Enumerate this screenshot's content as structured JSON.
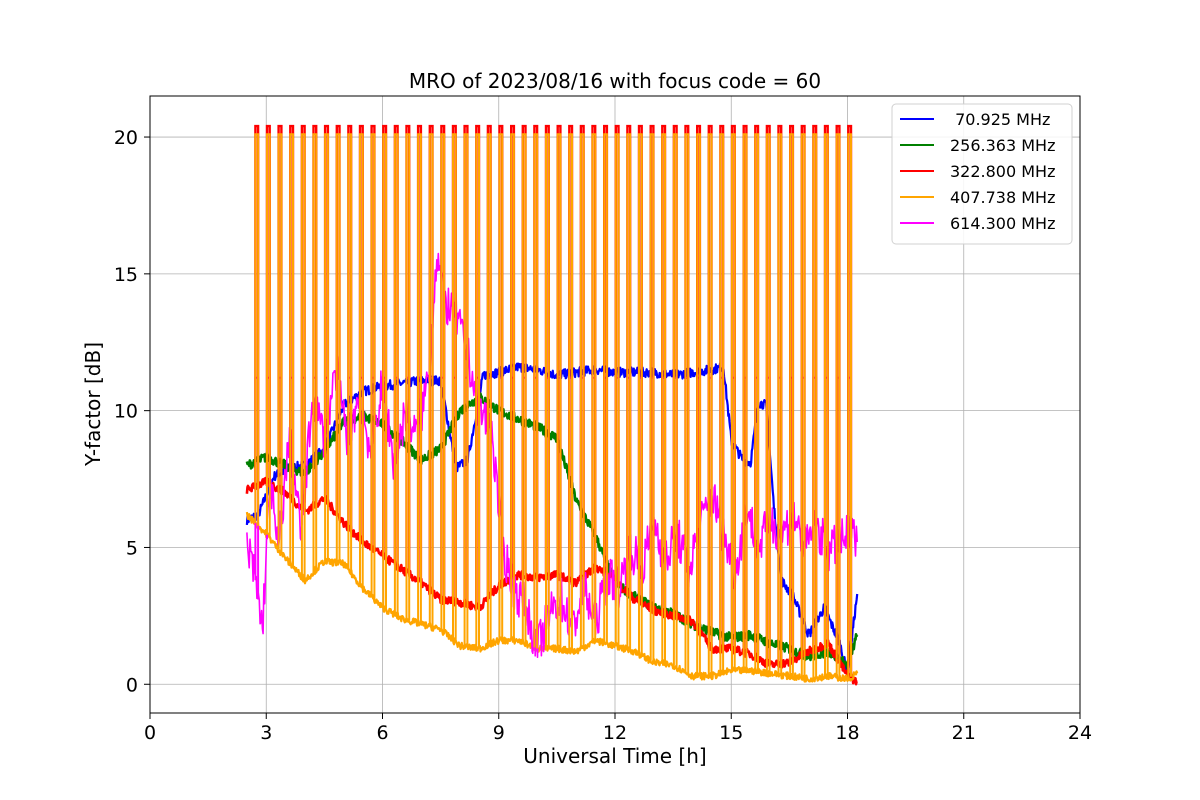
{
  "chart_data": {
    "type": "line",
    "title": "MRO of 2023/08/16 with focus code = 60",
    "xlabel": "Universal Time [h]",
    "ylabel": "Y-factor [dB]",
    "xlim": [
      0,
      24
    ],
    "ylim": [
      -1.05,
      21.5
    ],
    "xticks": [
      0,
      3,
      6,
      9,
      12,
      15,
      18,
      21,
      24
    ],
    "yticks": [
      0,
      5,
      10,
      15,
      20
    ],
    "grid": true,
    "legend_position": "top-right",
    "calibration_pulses": {
      "description_note": null,
      "start_h": 2.72,
      "end_h": 18.25,
      "period_h": 0.3,
      "width_h": 0.07,
      "peak_levels": {
        "322.800 MHz": 20.4,
        "407.738 MHz": 20.1,
        "614.300 MHz": 11.2
      }
    },
    "series": [
      {
        "name": " 70.925 MHz",
        "color": "#0000ff",
        "x": [
          2.5,
          2.8,
          3.2,
          3.6,
          4.0,
          4.5,
          5.0,
          5.5,
          6.0,
          6.5,
          7.0,
          7.5,
          7.9,
          8.2,
          8.6,
          9.0,
          9.5,
          10.0,
          10.5,
          11.0,
          11.5,
          12.0,
          12.5,
          13.0,
          13.5,
          14.0,
          14.5,
          14.8,
          15.0,
          15.3,
          15.5,
          15.7,
          15.9,
          16.1,
          16.3,
          16.6,
          17.0,
          17.4,
          17.8,
          18.0,
          18.25
        ],
        "values": [
          6.0,
          6.2,
          7.6,
          7.9,
          8.0,
          8.6,
          10.2,
          10.7,
          10.9,
          11.0,
          11.1,
          11.1,
          7.9,
          8.2,
          11.3,
          11.4,
          11.6,
          11.5,
          11.3,
          11.4,
          11.5,
          11.4,
          11.4,
          11.4,
          11.3,
          11.4,
          11.5,
          11.6,
          8.9,
          8.2,
          8.1,
          10.3,
          10.2,
          6.5,
          3.8,
          3.2,
          1.8,
          2.8,
          1.5,
          0.4,
          3.3
        ]
      },
      {
        "name": "256.363 MHz",
        "color": "#008000",
        "x": [
          2.5,
          3.0,
          3.5,
          4.0,
          4.5,
          5.0,
          5.5,
          6.0,
          6.5,
          7.0,
          7.5,
          8.0,
          8.5,
          9.0,
          9.5,
          10.0,
          10.5,
          11.0,
          11.5,
          12.0,
          12.5,
          13.0,
          13.5,
          14.0,
          14.5,
          15.0,
          15.5,
          16.0,
          16.5,
          17.0,
          17.5,
          18.0,
          18.25
        ],
        "values": [
          8.0,
          8.3,
          8.0,
          7.7,
          8.5,
          9.6,
          9.8,
          9.5,
          8.9,
          8.2,
          8.6,
          10.0,
          10.5,
          10.0,
          9.7,
          9.4,
          9.0,
          6.7,
          5.4,
          3.7,
          3.2,
          2.8,
          2.6,
          2.2,
          1.9,
          1.7,
          1.8,
          1.5,
          1.3,
          1.0,
          1.2,
          0.7,
          1.8
        ]
      },
      {
        "name": "322.800 MHz",
        "color": "#ff0000",
        "x": [
          2.5,
          3.0,
          3.5,
          4.0,
          4.5,
          5.0,
          5.5,
          6.0,
          6.5,
          7.0,
          7.5,
          8.0,
          8.5,
          9.0,
          9.5,
          10.0,
          10.5,
          11.0,
          11.5,
          12.0,
          12.5,
          13.0,
          13.5,
          14.0,
          14.5,
          15.0,
          15.5,
          16.0,
          16.5,
          17.0,
          17.5,
          18.0,
          18.25
        ],
        "values": [
          7.1,
          7.4,
          7.0,
          6.3,
          6.8,
          5.9,
          5.2,
          4.7,
          4.2,
          3.7,
          3.1,
          3.0,
          2.8,
          3.6,
          4.0,
          3.9,
          4.0,
          3.7,
          4.3,
          3.8,
          3.1,
          2.7,
          2.5,
          2.3,
          1.3,
          1.3,
          1.1,
          0.7,
          0.8,
          1.2,
          1.5,
          0.3,
          0.1
        ]
      },
      {
        "name": "407.738 MHz",
        "color": "#ffa500",
        "x": [
          2.5,
          3.0,
          3.5,
          4.0,
          4.5,
          5.0,
          5.5,
          6.0,
          6.5,
          7.0,
          7.5,
          8.0,
          8.5,
          9.0,
          9.5,
          10.0,
          10.5,
          11.0,
          11.5,
          12.0,
          12.5,
          13.0,
          13.5,
          14.0,
          14.5,
          15.0,
          15.5,
          16.0,
          16.5,
          17.0,
          17.5,
          18.0,
          18.25
        ],
        "values": [
          6.2,
          5.5,
          4.6,
          3.8,
          4.5,
          4.4,
          3.5,
          2.8,
          2.4,
          2.2,
          2.0,
          1.4,
          1.3,
          1.6,
          1.6,
          1.3,
          1.3,
          1.2,
          1.6,
          1.4,
          1.2,
          0.8,
          0.7,
          0.3,
          0.3,
          0.5,
          0.5,
          0.4,
          0.3,
          0.2,
          0.3,
          0.2,
          0.4
        ]
      },
      {
        "name": "614.300 MHz",
        "color": "#ff00ff",
        "x": [
          2.5,
          2.7,
          2.9,
          3.1,
          3.3,
          3.6,
          3.9,
          4.2,
          4.5,
          4.8,
          5.1,
          5.4,
          5.7,
          6.0,
          6.3,
          6.6,
          6.9,
          7.2,
          7.4,
          7.6,
          7.9,
          8.2,
          8.5,
          8.8,
          9.1,
          9.4,
          9.7,
          10.0,
          10.3,
          10.6,
          10.9,
          11.2,
          11.5,
          11.8,
          12.1,
          12.4,
          12.7,
          13.0,
          13.3,
          13.6,
          13.9,
          14.2,
          14.5,
          14.8,
          15.1,
          15.4,
          15.7,
          16.0,
          16.3,
          16.6,
          16.9,
          17.2,
          17.5,
          17.8,
          18.1,
          18.25
        ],
        "values": [
          5.0,
          4.0,
          2.0,
          7.5,
          4.8,
          9.0,
          5.5,
          10.5,
          9.0,
          11.5,
          9.0,
          10.5,
          8.5,
          11.0,
          8.0,
          10.0,
          9.0,
          11.5,
          15.8,
          14.0,
          13.5,
          12.0,
          10.0,
          9.5,
          5.0,
          3.5,
          2.8,
          1.3,
          2.5,
          3.2,
          2.0,
          3.5,
          2.2,
          4.0,
          3.5,
          5.0,
          4.2,
          6.0,
          4.5,
          5.5,
          4.2,
          5.8,
          7.0,
          5.5,
          4.0,
          6.5,
          5.0,
          6.0,
          5.5,
          6.2,
          5.0,
          5.8,
          4.8,
          5.2,
          5.5,
          5.2
        ]
      }
    ]
  }
}
